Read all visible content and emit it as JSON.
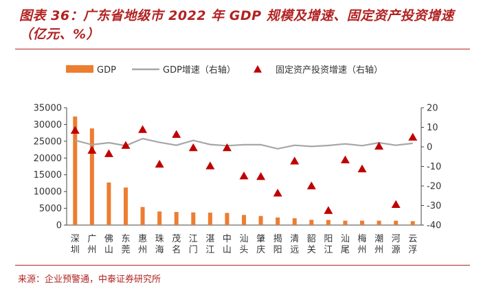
{
  "header": {
    "title": "图表 36：广东省地级市 2022 年 GDP 规模及增速、固定资产投资增速（亿元、%）"
  },
  "footer": {
    "source": "来源：企业预警通，中泰证券研究所"
  },
  "colors": {
    "accent": "#b22222",
    "bar": "#ed7d31",
    "line": "#a6a6a6",
    "marker": "#c00000"
  },
  "chart_data": {
    "type": "bar",
    "categories": [
      "深圳",
      "广州",
      "佛山",
      "东莞",
      "惠州",
      "珠海",
      "茂名",
      "江门",
      "湛江",
      "中山",
      "汕头",
      "肇庆",
      "揭阳",
      "清远",
      "韶关",
      "阳江",
      "汕尾",
      "梅州",
      "潮州",
      "河源",
      "云浮"
    ],
    "series": [
      {
        "name": "GDP",
        "type": "bar",
        "axis": "left",
        "values": [
          32388,
          28839,
          12698,
          11200,
          5401,
          4046,
          3905,
          3773,
          3712,
          3631,
          3018,
          2705,
          2260,
          2033,
          1564,
          1536,
          1323,
          1318,
          1313,
          1295,
          1163
        ]
      },
      {
        "name": "GDP增速（右轴）",
        "type": "line",
        "axis": "right",
        "values": [
          3.3,
          1.1,
          2.1,
          0.6,
          4.2,
          2.3,
          0.8,
          3.3,
          1.2,
          0.6,
          1.1,
          1.1,
          -1.0,
          0.8,
          0.2,
          0.7,
          1.5,
          0.6,
          2.1,
          0.8,
          1.8
        ]
      },
      {
        "name": "固定资产投资增速（右轴）",
        "type": "scatter",
        "axis": "right",
        "values": [
          8.4,
          -1.8,
          -3.5,
          0.7,
          8.8,
          -8.9,
          6.3,
          -0.5,
          -9.8,
          -0.5,
          -14.9,
          -15.2,
          -23.7,
          -7.3,
          -20.0,
          -32.6,
          -6.7,
          -11.3,
          0.3,
          -29.5,
          4.9
        ]
      }
    ],
    "legend": [
      "GDP",
      "GDP增速（右轴）",
      "固定资产投资增速（右轴）"
    ],
    "legend_position": "top",
    "ylim_left": [
      0,
      35000
    ],
    "yticks_left": [
      "35000",
      "30000",
      "25000",
      "20000",
      "15000",
      "10000",
      "5000",
      "0"
    ],
    "ylim_right": [
      -40,
      20
    ],
    "yticks_right": [
      "20",
      "10",
      "0",
      "-10",
      "-20",
      "-30",
      "-40"
    ],
    "xlabel": "",
    "ylabel": ""
  }
}
